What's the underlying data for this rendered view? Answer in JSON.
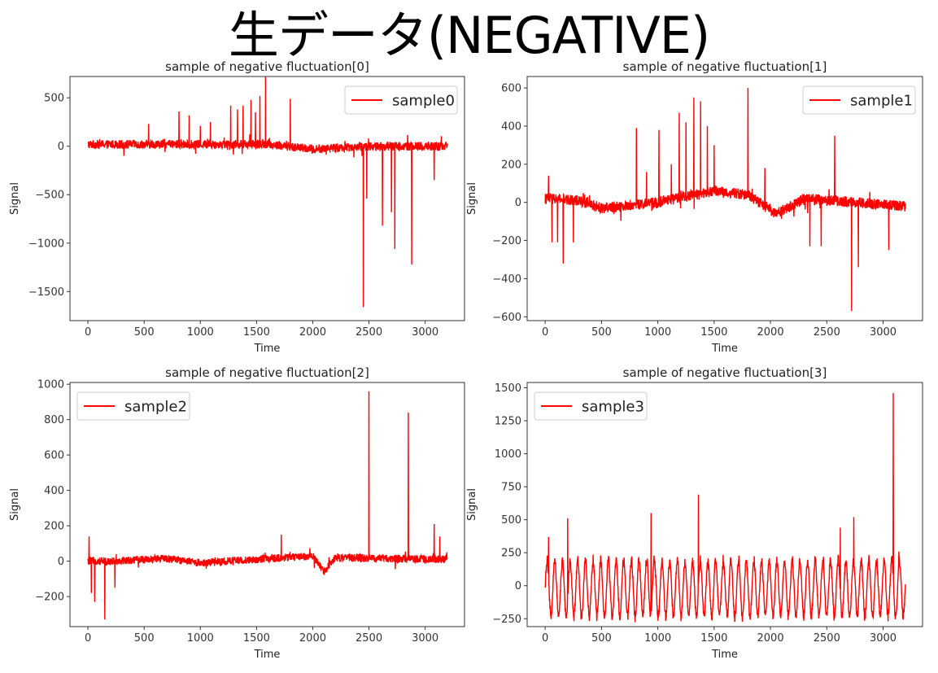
{
  "page": {
    "title": "生データ(NEGATIVE)"
  },
  "colors": {
    "series": "#ff0000",
    "axis": "#333333",
    "legend_border": "#cccccc"
  },
  "chart_data": [
    {
      "type": "line",
      "title": "sample of negative fluctuation[0]",
      "xlabel": "Time",
      "ylabel": "Signal",
      "xlim": [
        -160,
        3350
      ],
      "ylim": [
        -1800,
        720
      ],
      "xticks": [
        0,
        500,
        1000,
        1500,
        2000,
        2500,
        3000
      ],
      "yticks": [
        -1500,
        -1000,
        -500,
        0,
        500
      ],
      "ytick_labels": [
        "−1500",
        "−1000",
        "−500",
        "0",
        "500"
      ],
      "legend_position": "upper right",
      "series": [
        {
          "name": "sample0",
          "color": "#ff0000",
          "n": 3200,
          "baseline": [
            [
              0,
              20
            ],
            [
              1600,
              20
            ],
            [
              2000,
              -30
            ],
            [
              2500,
              0
            ],
            [
              3200,
              0
            ]
          ],
          "noise": 45,
          "spikes": [
            [
              540,
              230
            ],
            [
              810,
              360
            ],
            [
              900,
              320
            ],
            [
              1000,
              210
            ],
            [
              1090,
              250
            ],
            [
              1270,
              420
            ],
            [
              1330,
              380
            ],
            [
              1380,
              420
            ],
            [
              1450,
              480
            ],
            [
              1490,
              350
            ],
            [
              1530,
              520
            ],
            [
              1580,
              720
            ],
            [
              1800,
              490
            ],
            [
              2450,
              -1660
            ],
            [
              2620,
              -820
            ],
            [
              2700,
              -680
            ],
            [
              2730,
              -1060
            ],
            [
              2880,
              -1220
            ],
            [
              3080,
              -350
            ],
            [
              2480,
              -540
            ]
          ]
        }
      ]
    },
    {
      "type": "line",
      "title": "sample of negative fluctuation[1]",
      "xlabel": "Time",
      "ylabel": "Signal",
      "xlim": [
        -160,
        3350
      ],
      "ylim": [
        -620,
        660
      ],
      "xticks": [
        0,
        500,
        1000,
        1500,
        2000,
        2500,
        3000
      ],
      "yticks": [
        -600,
        -400,
        -200,
        0,
        200,
        400,
        600
      ],
      "ytick_labels": [
        "−600",
        "−400",
        "−200",
        "0",
        "200",
        "400",
        "600"
      ],
      "legend_position": "upper right",
      "series": [
        {
          "name": "sample1",
          "color": "#ff0000",
          "n": 3200,
          "baseline": [
            [
              0,
              20
            ],
            [
              300,
              10
            ],
            [
              500,
              -30
            ],
            [
              1000,
              0
            ],
            [
              1500,
              60
            ],
            [
              1800,
              40
            ],
            [
              2050,
              -60
            ],
            [
              2300,
              20
            ],
            [
              3200,
              -20
            ]
          ],
          "noise": 28,
          "spikes": [
            [
              30,
              140
            ],
            [
              60,
              -210
            ],
            [
              110,
              -210
            ],
            [
              160,
              -320
            ],
            [
              250,
              -210
            ],
            [
              810,
              390
            ],
            [
              900,
              160
            ],
            [
              1010,
              380
            ],
            [
              1120,
              200
            ],
            [
              1190,
              470
            ],
            [
              1250,
              420
            ],
            [
              1320,
              550
            ],
            [
              1380,
              530
            ],
            [
              1440,
              400
            ],
            [
              1500,
              300
            ],
            [
              1800,
              600
            ],
            [
              1950,
              180
            ],
            [
              2350,
              -230
            ],
            [
              2450,
              -230
            ],
            [
              2570,
              350
            ],
            [
              2720,
              -570
            ],
            [
              2780,
              -340
            ],
            [
              3050,
              -250
            ]
          ]
        }
      ]
    },
    {
      "type": "line",
      "title": "sample of negative fluctuation[2]",
      "xlabel": "Time",
      "ylabel": "Signal",
      "xlim": [
        -160,
        3350
      ],
      "ylim": [
        -370,
        1010
      ],
      "xticks": [
        0,
        500,
        1000,
        1500,
        2000,
        2500,
        3000
      ],
      "yticks": [
        -200,
        0,
        200,
        400,
        600,
        800,
        1000
      ],
      "ytick_labels": [
        "−200",
        "0",
        "200",
        "400",
        "600",
        "800",
        "1000"
      ],
      "legend_position": "upper left",
      "series": [
        {
          "name": "sample2",
          "color": "#ff0000",
          "n": 3200,
          "baseline": [
            [
              0,
              0
            ],
            [
              200,
              0
            ],
            [
              700,
              15
            ],
            [
              1000,
              -10
            ],
            [
              1500,
              10
            ],
            [
              2000,
              30
            ],
            [
              2100,
              -60
            ],
            [
              2200,
              20
            ],
            [
              3200,
              10
            ]
          ],
          "noise": 22,
          "spikes": [
            [
              10,
              140
            ],
            [
              30,
              -180
            ],
            [
              60,
              -230
            ],
            [
              150,
              -330
            ],
            [
              240,
              -150
            ],
            [
              1720,
              150
            ],
            [
              2500,
              960
            ],
            [
              2850,
              840
            ],
            [
              3080,
              210
            ],
            [
              3130,
              140
            ]
          ]
        }
      ]
    },
    {
      "type": "line",
      "title": "sample of negative fluctuation[3]",
      "xlabel": "Time",
      "ylabel": "Signal",
      "xlim": [
        -160,
        3350
      ],
      "ylim": [
        -310,
        1540
      ],
      "xticks": [
        0,
        500,
        1000,
        1500,
        2000,
        2500,
        3000
      ],
      "yticks": [
        -250,
        0,
        250,
        500,
        750,
        1000,
        1250,
        1500
      ],
      "ytick_labels": [
        "−250",
        "0",
        "250",
        "500",
        "750",
        "1000",
        "1250",
        "1500"
      ],
      "legend_position": "upper left",
      "series": [
        {
          "name": "sample3",
          "color": "#ff0000",
          "n": 3200,
          "oscillation": {
            "period": 68,
            "amplitude": 210,
            "offset": -20
          },
          "noise": 25,
          "spikes": [
            [
              30,
              370
            ],
            [
              200,
              510
            ],
            [
              940,
              550
            ],
            [
              1360,
              690
            ],
            [
              2620,
              440
            ],
            [
              2740,
              520
            ],
            [
              3090,
              1460
            ],
            [
              3140,
              260
            ]
          ]
        }
      ]
    }
  ]
}
